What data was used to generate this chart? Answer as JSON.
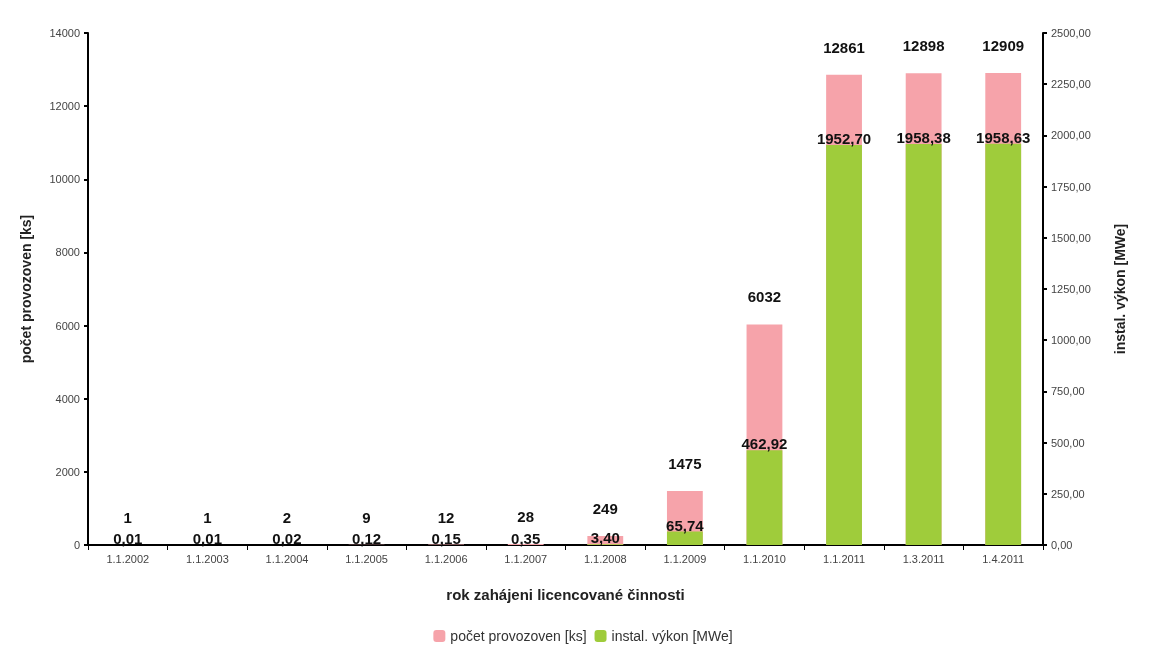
{
  "chart_data": {
    "type": "bar",
    "xlabel": "rok zahájeni licencované činnosti",
    "ylabel": "počet provozoven [ks]",
    "y2label": "instal. výkon [MWe]",
    "categories": [
      "1.1.2002",
      "1.1.2003",
      "1.1.2004",
      "1.1.2005",
      "1.1.2006",
      "1.1.2007",
      "1.1.2008",
      "1.1.2009",
      "1.1.2010",
      "1.1.2011",
      "1.3.2011",
      "1.4.2011"
    ],
    "series": [
      {
        "name": "počet provozoven [ks]",
        "color": "#f6a3aa",
        "values": [
          1,
          1,
          2,
          9,
          12,
          28,
          249,
          1475,
          6032,
          12861,
          12898,
          12909
        ],
        "value_labels": [
          "1",
          "1",
          "2",
          "9",
          "12",
          "28",
          "249",
          "1475",
          "6032",
          "12861",
          "12898",
          "12909"
        ]
      },
      {
        "name": "instal. výkon [MWe]",
        "color": "#9fcc3b",
        "axis": "y2",
        "values": [
          0.01,
          0.01,
          0.02,
          0.12,
          0.15,
          0.35,
          3.4,
          65.74,
          462.92,
          1952.7,
          1958.38,
          1958.63
        ],
        "value_labels": [
          "0,01",
          "0,01",
          "0,02",
          "0,12",
          "0,15",
          "0,35",
          "3,40",
          "65,74",
          "462,92",
          "1952,70",
          "1958,38",
          "1958,63"
        ]
      }
    ],
    "ylim": [
      0,
      14000
    ],
    "yticks": [
      0,
      2000,
      4000,
      6000,
      8000,
      10000,
      12000,
      14000
    ],
    "y2lim": [
      0,
      2500
    ],
    "y2ticks": [
      {
        "value": 0,
        "label": "0,00"
      },
      {
        "value": 250,
        "label": "250,00"
      },
      {
        "value": 500,
        "label": "500,00"
      },
      {
        "value": 750,
        "label": "750,00"
      },
      {
        "value": 1000,
        "label": "1000,00"
      },
      {
        "value": 1250,
        "label": "1250,00"
      },
      {
        "value": 1500,
        "label": "1500,00"
      },
      {
        "value": 1750,
        "label": "1750,00"
      },
      {
        "value": 2000,
        "label": "2000,00"
      },
      {
        "value": 2250,
        "label": "2250,00"
      },
      {
        "value": 2500,
        "label": "2500,00"
      }
    ],
    "grid": false,
    "legend": "bottom"
  }
}
